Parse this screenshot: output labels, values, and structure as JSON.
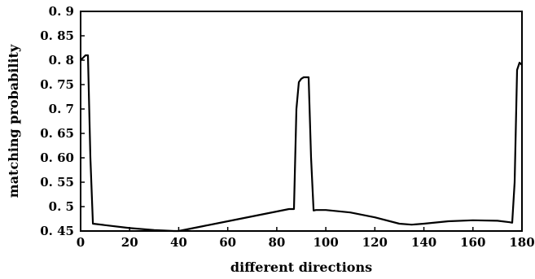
{
  "chart_data": {
    "type": "line",
    "title": "",
    "xlabel": "different directions",
    "ylabel": "matching probability",
    "xlim": [
      0,
      180
    ],
    "ylim": [
      0.45,
      0.9
    ],
    "grid": false,
    "xticks": [
      0,
      20,
      40,
      60,
      80,
      100,
      120,
      140,
      160,
      180
    ],
    "xtick_labels": [
      "0",
      "20",
      "40",
      "60",
      "80",
      "100",
      "120",
      "140",
      "160",
      "180"
    ],
    "yticks": [
      0.45,
      0.5,
      0.55,
      0.6,
      0.65,
      0.7,
      0.75,
      0.8,
      0.85,
      0.9
    ],
    "ytick_labels": [
      "0. 45",
      "0. 5",
      "0. 55",
      "0. 60",
      "0. 65",
      "0. 7",
      "0. 75",
      "0. 8",
      "0. 85",
      "0. 9"
    ],
    "series": [
      {
        "color": "#000000",
        "x": [
          0,
          2,
          3,
          4,
          5,
          10,
          20,
          30,
          38,
          40,
          45,
          50,
          60,
          70,
          80,
          85,
          87,
          88,
          89,
          90,
          91,
          92,
          93,
          94,
          95,
          96,
          100,
          110,
          120,
          130,
          135,
          140,
          150,
          160,
          170,
          175,
          176,
          177,
          178,
          179,
          180
        ],
        "y": [
          0.8,
          0.81,
          0.81,
          0.6,
          0.465,
          0.462,
          0.456,
          0.452,
          0.45,
          0.45,
          0.455,
          0.46,
          0.47,
          0.48,
          0.49,
          0.495,
          0.495,
          0.7,
          0.755,
          0.762,
          0.765,
          0.765,
          0.765,
          0.6,
          0.492,
          0.493,
          0.493,
          0.488,
          0.478,
          0.465,
          0.463,
          0.465,
          0.47,
          0.472,
          0.471,
          0.468,
          0.467,
          0.55,
          0.78,
          0.795,
          0.79
        ]
      }
    ]
  }
}
